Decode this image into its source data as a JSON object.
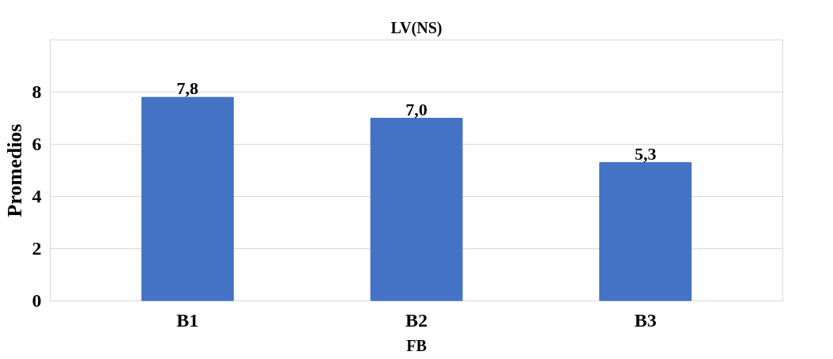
{
  "chart_data": {
    "type": "bar",
    "title": "LV(NS)",
    "xlabel": "FB",
    "ylabel": "Promedios",
    "categories": [
      "B1",
      "B2",
      "B3"
    ],
    "values": [
      7.8,
      7.0,
      5.3
    ],
    "value_labels": [
      "7,8",
      "7,0",
      "5,3"
    ],
    "color": "#4472c4",
    "ylim": [
      0,
      10
    ],
    "yticks": [
      0,
      2,
      4,
      6,
      8
    ],
    "grid": "y"
  }
}
